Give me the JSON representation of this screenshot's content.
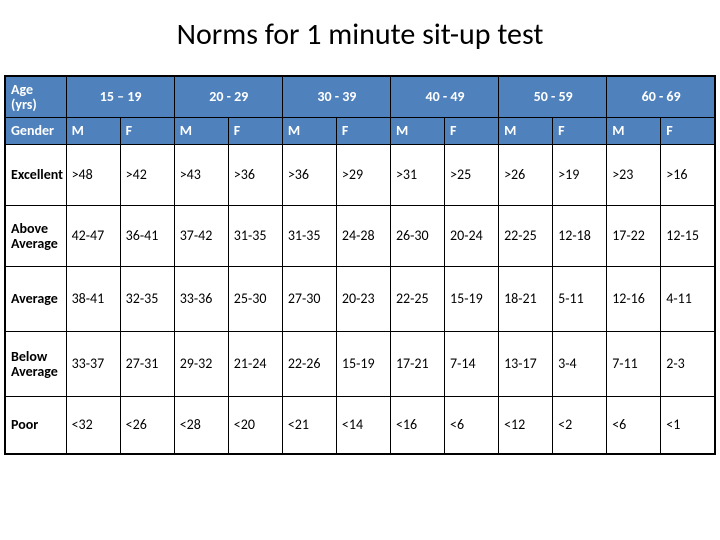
{
  "title": "Norms for 1 minute sit-up test",
  "table": {
    "background_header": "#4f81bd",
    "header_text_color": "#ffffff",
    "border_color": "#000000",
    "font_family": "Calibri",
    "title_fontsize": 30,
    "cell_fontsize": 14,
    "age_label": "Age (yrs)",
    "gender_label": "Gender",
    "age_groups": [
      "15 – 19",
      "20 - 29",
      "30 - 39",
      "40 - 49",
      "50 - 59",
      "60 - 69"
    ],
    "genders": [
      "M",
      "F"
    ],
    "row_labels": [
      "Excellent",
      "Above Average",
      "Average",
      "Below Average",
      "Poor"
    ],
    "rows": {
      "excellent": [
        ">48",
        ">42",
        ">43",
        ">36",
        ">36",
        ">29",
        ">31",
        ">25",
        ">26",
        ">19",
        ">23",
        ">16"
      ],
      "above_average": [
        "42-47",
        "36-41",
        "37-42",
        "31-35",
        "31-35",
        "24-28",
        "26-30",
        "20-24",
        "22-25",
        "12-18",
        "17-22",
        "12-15"
      ],
      "average": [
        "38-41",
        "32-35",
        "33-36",
        "25-30",
        "27-30",
        "20-23",
        "22-25",
        "15-19",
        "18-21",
        "5-11",
        "12-16",
        "4-11"
      ],
      "below_average": [
        "33-37",
        "27-31",
        "29-32",
        "21-24",
        "22-26",
        "15-19",
        "17-21",
        "7-14",
        "13-17",
        "3-4",
        "7-11",
        "2-3"
      ],
      "poor": [
        "<32",
        "<26",
        "<28",
        "<20",
        "<21",
        "<14",
        "<16",
        "<6",
        "<12",
        "<2",
        "<6",
        "<1"
      ]
    }
  }
}
